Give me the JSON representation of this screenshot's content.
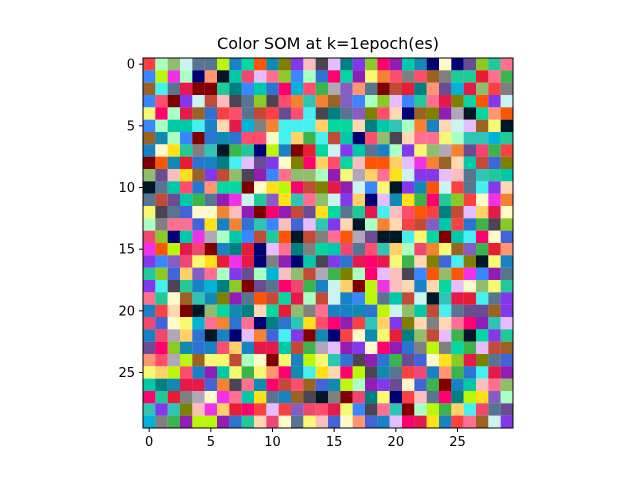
{
  "chart_data": {
    "type": "heatmap",
    "title": "Color SOM at k=1epoch(es)",
    "xlabel": "",
    "ylabel": "",
    "grid": false,
    "grid_size": [
      30,
      30
    ],
    "xlim": [
      -0.5,
      29.5
    ],
    "ylim": [
      29.5,
      -0.5
    ],
    "xticks": [
      0,
      5,
      10,
      15,
      20,
      25
    ],
    "yticks": [
      0,
      5,
      10,
      15,
      20,
      25
    ],
    "palette": [
      "#e6194b",
      "#3cb44b",
      "#ffe119",
      "#4363d8",
      "#f58231",
      "#911eb4",
      "#46f0f0",
      "#f032e6",
      "#bcf60c",
      "#fabebe",
      "#008080",
      "#e6beff",
      "#9a6324",
      "#fffac8",
      "#800000",
      "#aaffc3",
      "#808000",
      "#ffd8b1",
      "#000075",
      "#808080",
      "#20c997",
      "#ff6f91",
      "#845ec2",
      "#00c9a7",
      "#c34a36",
      "#ff9671",
      "#2c73d2",
      "#b0a8b9",
      "#4b4453",
      "#f9f871",
      "#00b4d8",
      "#90be6d",
      "#f94144",
      "#577590",
      "#ff4d6d",
      "#06d6a0",
      "#118ab2",
      "#ef476f",
      "#ffd166",
      "#8338ec",
      "#3a86ff",
      "#fb5607",
      "#ff006e",
      "#8ac926",
      "#1982c4",
      "#6a4c93",
      "#2ec4b6",
      "#e71d36",
      "#011627",
      "#cbf3f0"
    ]
  }
}
